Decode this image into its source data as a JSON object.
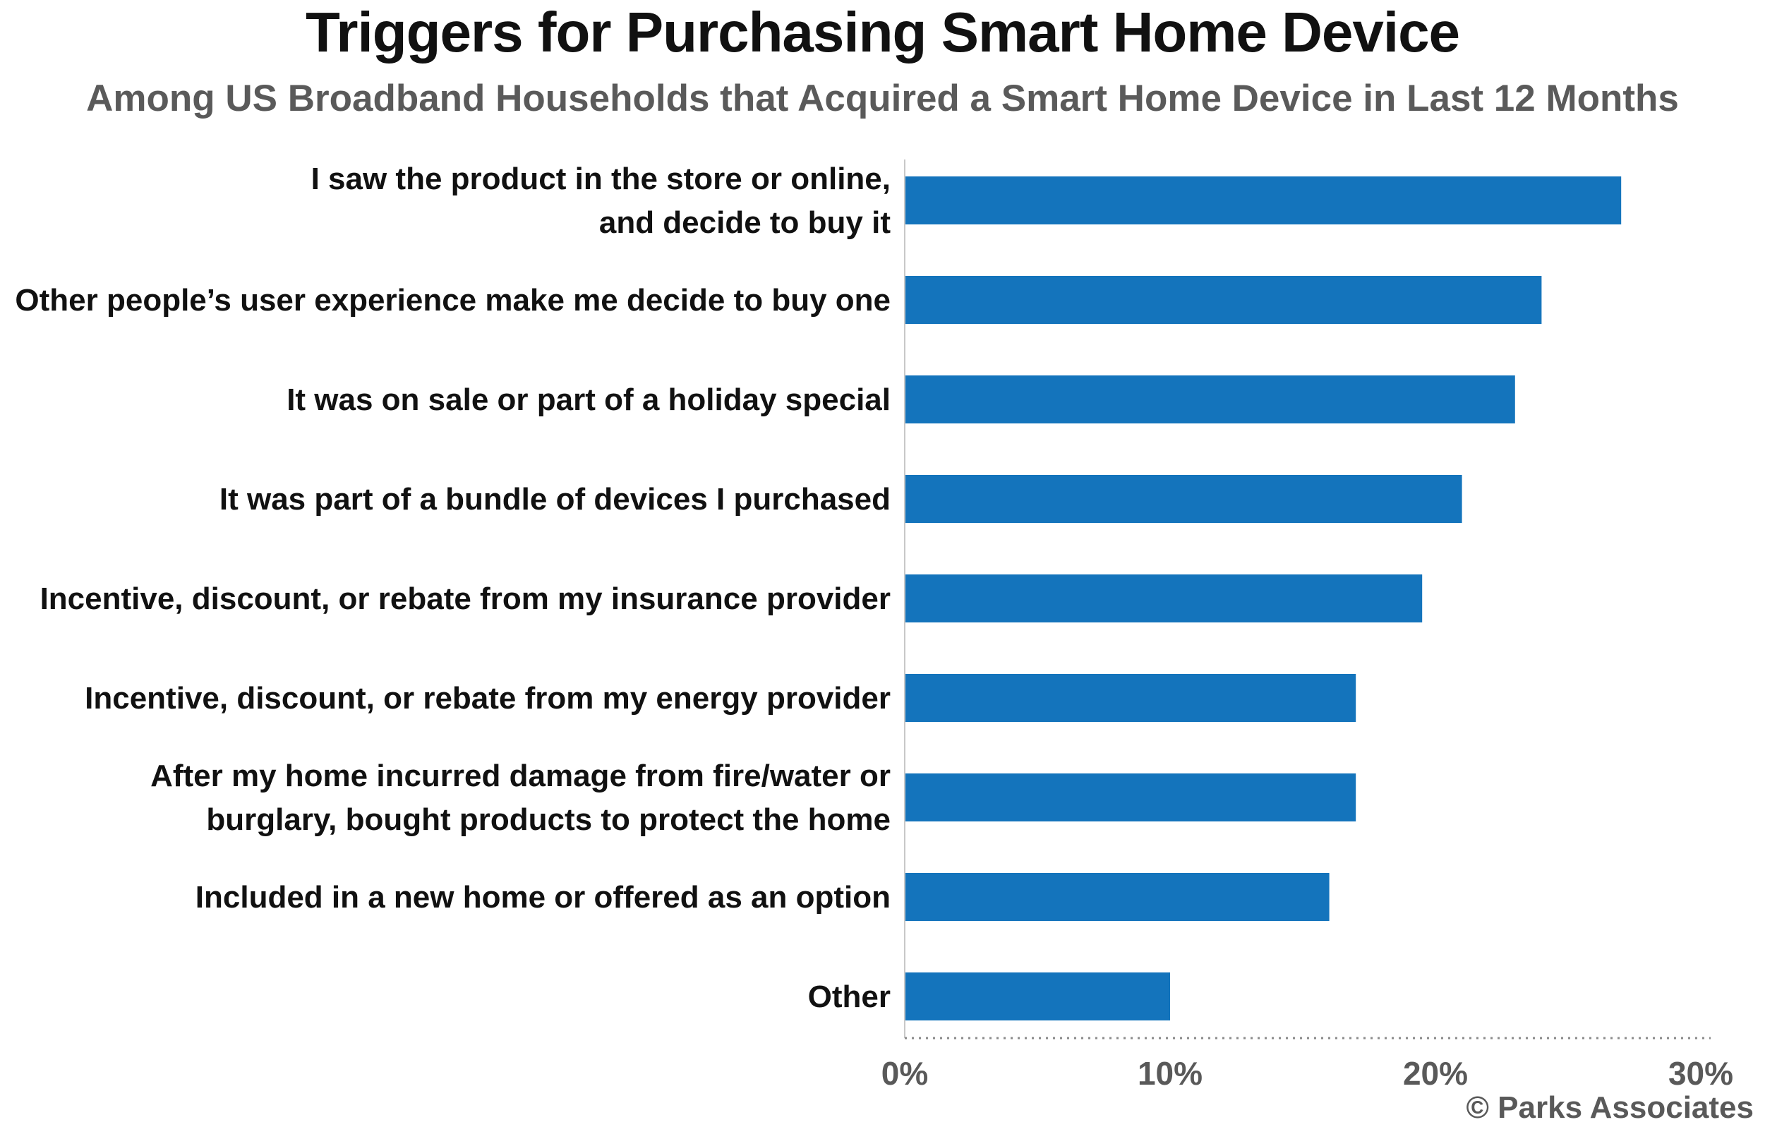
{
  "chart_data": {
    "type": "bar",
    "orientation": "horizontal",
    "title": "Triggers for Purchasing Smart Home Device",
    "subtitle": "Among US Broadband Households that Acquired a Smart Home Device in Last 12 Months",
    "categories": [
      "I saw the product in the store or online,\nand decide to buy it",
      "Other people’s user experience make me decide to buy one",
      "It was on sale or part of a holiday special",
      "It was part of a bundle of devices I purchased",
      "Incentive, discount, or rebate from my insurance provider",
      "Incentive, discount, or rebate from my energy provider",
      "After my home incurred damage from fire/water or\nburglary, bought products to protect the home",
      "Included in a new home or offered as an option",
      "Other"
    ],
    "values": [
      27,
      24,
      23,
      21,
      19.5,
      17,
      17,
      16,
      10
    ],
    "xlim": [
      0,
      30
    ],
    "xticks": [
      0,
      10,
      20,
      30
    ],
    "tick_labels": [
      "0%",
      "10%",
      "20%",
      "30%"
    ],
    "bar_color": "#1474BC",
    "grid": false,
    "legend": "none"
  },
  "source": "© Parks Associates"
}
